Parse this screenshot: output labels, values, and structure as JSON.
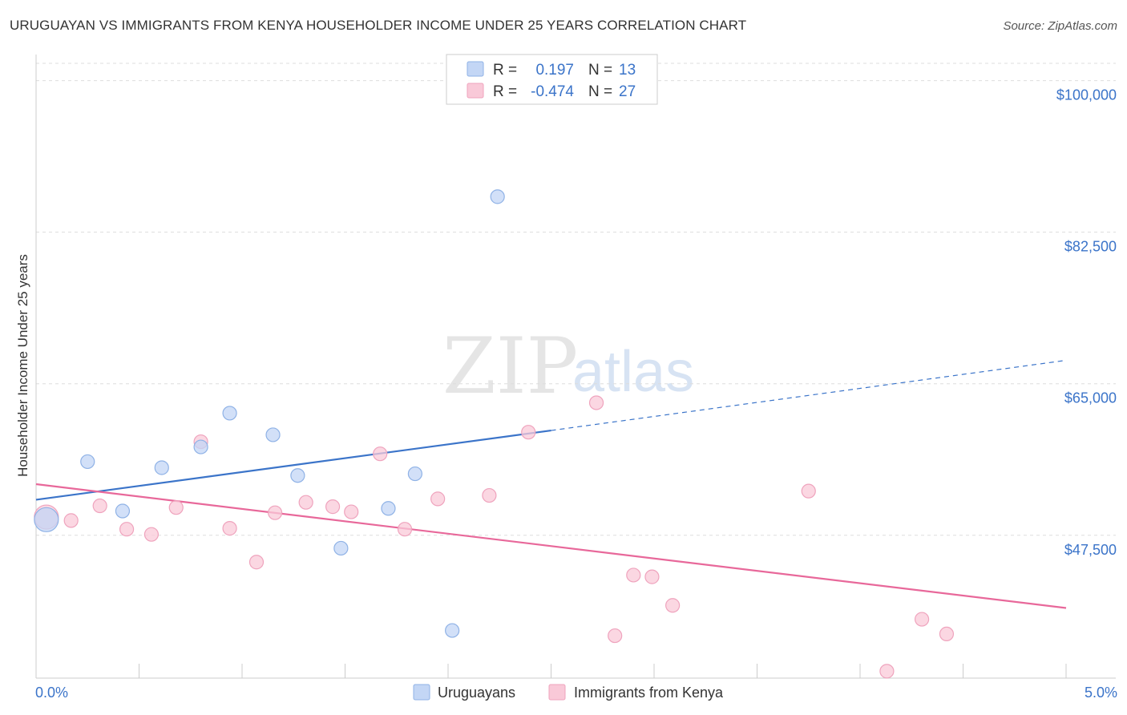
{
  "title": "URUGUAYAN VS IMMIGRANTS FROM KENYA HOUSEHOLDER INCOME UNDER 25 YEARS CORRELATION CHART",
  "source": "Source: ZipAtlas.com",
  "watermark": {
    "zip": "ZIP",
    "atlas": "atlas"
  },
  "colors": {
    "blue": "#3b74c9",
    "blue_fill": "#c3d6f5",
    "blue_stroke": "#8fb2e6",
    "pink": "#e8689a",
    "pink_fill": "#f9c9d8",
    "pink_stroke": "#efa3bd",
    "grid": "#dddddd"
  },
  "legend": {
    "rows": [
      {
        "r_label": "R =",
        "r_value": "0.197",
        "n_label": "N =",
        "n_value": "13",
        "series": "Uruguayans"
      },
      {
        "r_label": "R =",
        "r_value": "-0.474",
        "n_label": "N =",
        "n_value": "27",
        "series": "Immigrants from Kenya"
      }
    ]
  },
  "bottom_legend": [
    "Uruguayans",
    "Immigrants from Kenya"
  ],
  "chart_data": {
    "type": "scatter",
    "title": "URUGUAYAN VS IMMIGRANTS FROM KENYA HOUSEHOLDER INCOME UNDER 25 YEARS CORRELATION CHART",
    "xlabel": "",
    "ylabel": "Householder Income Under 25 years",
    "xlim": [
      0,
      5
    ],
    "ylim": [
      31000,
      102000
    ],
    "x_tick_labels": [
      "0.0%",
      "5.0%"
    ],
    "y_ticks": [
      {
        "value": 47500,
        "label": "$47,500"
      },
      {
        "value": 65000,
        "label": "$65,000"
      },
      {
        "value": 82500,
        "label": "$82,500"
      },
      {
        "value": 100000,
        "label": "$100,000"
      }
    ],
    "grid": true,
    "series": [
      {
        "name": "Uruguayans",
        "color": "#3b74c9",
        "points": [
          {
            "x": 0.05,
            "y": 49300,
            "big": true
          },
          {
            "x": 0.25,
            "y": 56000
          },
          {
            "x": 0.42,
            "y": 50300
          },
          {
            "x": 0.61,
            "y": 55300
          },
          {
            "x": 0.8,
            "y": 57700
          },
          {
            "x": 0.94,
            "y": 61600
          },
          {
            "x": 1.15,
            "y": 59100
          },
          {
            "x": 1.27,
            "y": 54400
          },
          {
            "x": 1.48,
            "y": 46000
          },
          {
            "x": 1.71,
            "y": 50600
          },
          {
            "x": 1.84,
            "y": 54600
          },
          {
            "x": 2.02,
            "y": 36500
          },
          {
            "x": 2.24,
            "y": 86600
          }
        ],
        "trend": {
          "x0": 0.0,
          "y0": 51600,
          "x1": 2.5,
          "y1": 59600,
          "dash_x1": 5.0,
          "dash_y1": 67700
        }
      },
      {
        "name": "Immigrants from Kenya",
        "color": "#e8689a",
        "points": [
          {
            "x": 0.05,
            "y": 49600,
            "big": true
          },
          {
            "x": 0.17,
            "y": 49200
          },
          {
            "x": 0.31,
            "y": 50900
          },
          {
            "x": 0.44,
            "y": 48200
          },
          {
            "x": 0.56,
            "y": 47600
          },
          {
            "x": 0.68,
            "y": 50700
          },
          {
            "x": 0.8,
            "y": 58300
          },
          {
            "x": 0.94,
            "y": 48300
          },
          {
            "x": 1.07,
            "y": 44400
          },
          {
            "x": 1.16,
            "y": 50100
          },
          {
            "x": 1.31,
            "y": 51300
          },
          {
            "x": 1.44,
            "y": 50800
          },
          {
            "x": 1.53,
            "y": 50200
          },
          {
            "x": 1.67,
            "y": 56900
          },
          {
            "x": 1.79,
            "y": 48200
          },
          {
            "x": 1.95,
            "y": 51700
          },
          {
            "x": 2.2,
            "y": 52100
          },
          {
            "x": 2.39,
            "y": 59400
          },
          {
            "x": 2.72,
            "y": 62800
          },
          {
            "x": 2.81,
            "y": 35900
          },
          {
            "x": 2.9,
            "y": 42900
          },
          {
            "x": 2.99,
            "y": 42700
          },
          {
            "x": 3.09,
            "y": 39400
          },
          {
            "x": 3.75,
            "y": 52600
          },
          {
            "x": 4.13,
            "y": 31800
          },
          {
            "x": 4.3,
            "y": 37800
          },
          {
            "x": 4.42,
            "y": 36100
          }
        ],
        "trend": {
          "x0": 0.0,
          "y0": 53400,
          "x1": 5.0,
          "y1": 39100
        }
      }
    ]
  }
}
